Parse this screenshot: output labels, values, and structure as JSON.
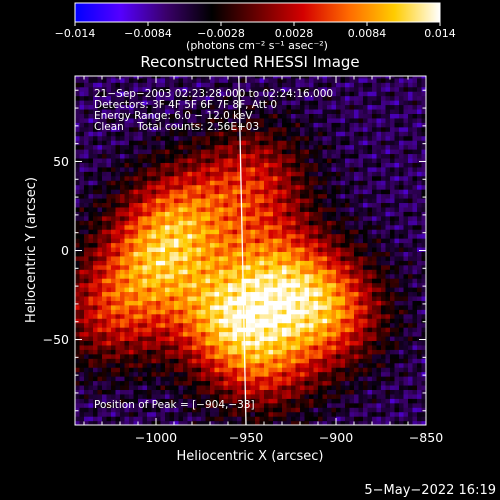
{
  "chart_data": {
    "type": "heatmap",
    "title": "Reconstructed RHESSI Image",
    "xlabel": "Heliocentric X (arcsec)",
    "ylabel": "Heliocentric Y (arcsec)",
    "xlim": [
      -1045,
      -850
    ],
    "ylim": [
      -98,
      98
    ],
    "xticks": [
      {
        "value": -1000,
        "label": "−1000"
      },
      {
        "value": -950,
        "label": "−950"
      },
      {
        "value": -900,
        "label": "−900"
      },
      {
        "value": -850,
        "label": "−850"
      }
    ],
    "yticks": [
      {
        "value": 50,
        "label": "50"
      },
      {
        "value": 0,
        "label": "0"
      },
      {
        "value": -50,
        "label": "−50"
      }
    ],
    "colorbar": {
      "min": -0.014,
      "max": 0.014,
      "units": "(photons cm⁻² s⁻¹ asec⁻²)",
      "ticks": [
        {
          "value": -0.014,
          "label": "−0.014"
        },
        {
          "value": -0.0084,
          "label": "−0.0084"
        },
        {
          "value": -0.0028,
          "label": "−0.0028"
        },
        {
          "value": 0.0028,
          "label": "0.0028"
        },
        {
          "value": 0.0084,
          "label": "0.0084"
        },
        {
          "value": 0.014,
          "label": "0.014"
        }
      ],
      "colors": [
        "#0000ff",
        "#5500ff",
        "#3a006a",
        "#000000",
        "#6a0000",
        "#d40000",
        "#ff6a00",
        "#ffcc00",
        "#ffffff"
      ]
    },
    "annotations": {
      "time": "21−Sep−2003 02:23:28.000 to 02:24:16.000",
      "detectors": "Detectors: 3F 4F 5F 6F 7F 8F, Att 0",
      "energy": "Energy Range: 6.0 − 12.0 keV",
      "clean": "Clean    Total counts: 2.56E+03",
      "peak": "Position of Peak = [−904,−33]"
    },
    "limb_line": {
      "x_top": -954,
      "x_bottom": -950,
      "color": "#ffffff"
    },
    "emission_sources": [
      {
        "x": -963,
        "y": -37,
        "value": 0.0135
      },
      {
        "x": -904,
        "y": -33,
        "value": 0.014
      },
      {
        "x": -1002,
        "y": -5,
        "value": 0.0105
      },
      {
        "x": -933,
        "y": -12,
        "value": 0.011
      },
      {
        "x": -985,
        "y": 20,
        "value": 0.0095
      },
      {
        "x": -945,
        "y": 40,
        "value": 0.008
      },
      {
        "x": -1025,
        "y": -35,
        "value": 0.008
      },
      {
        "x": -940,
        "y": -62,
        "value": 0.0085
      }
    ]
  },
  "footer": {
    "timestamp": "5−May−2022 16:19"
  }
}
